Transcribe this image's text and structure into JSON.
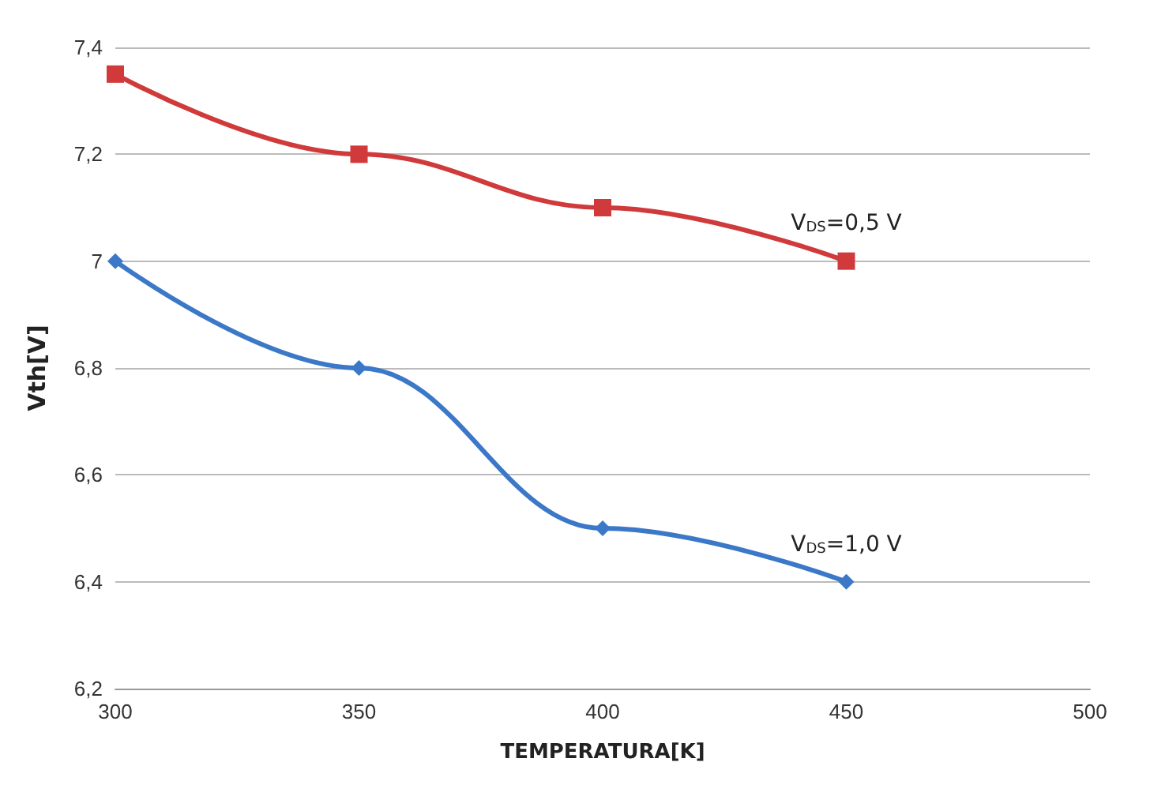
{
  "chart_data": {
    "type": "line",
    "xlabel": "TEMPERATURA[K]",
    "ylabel": "Vth[V]",
    "x": [
      300,
      350,
      400,
      450
    ],
    "series": [
      {
        "name": "V$_{DS}$=0,5 V",
        "color": "#d03a3a",
        "marker": "square",
        "values": [
          7.35,
          7.2,
          7.1,
          7.0
        ]
      },
      {
        "name": "V$_{DS}$=1,0 V",
        "color": "#3c78c8",
        "marker": "diamond",
        "values": [
          7.0,
          6.8,
          6.5,
          6.4
        ]
      }
    ],
    "xlim": [
      300,
      500
    ],
    "xticks": [
      300,
      350,
      400,
      450,
      500
    ],
    "ylim": [
      6.2,
      7.4
    ],
    "yticks": [
      {
        "value": 6.2,
        "label": "6,2"
      },
      {
        "value": 6.4,
        "label": "6,4"
      },
      {
        "value": 6.6,
        "label": "6,6"
      },
      {
        "value": 6.8,
        "label": "6,8"
      },
      {
        "value": 7,
        "label": "7"
      },
      {
        "value": 7.2,
        "label": "7,2"
      },
      {
        "value": 7.4,
        "label": "7,4"
      }
    ],
    "grid": "y",
    "line_style": "solid"
  }
}
